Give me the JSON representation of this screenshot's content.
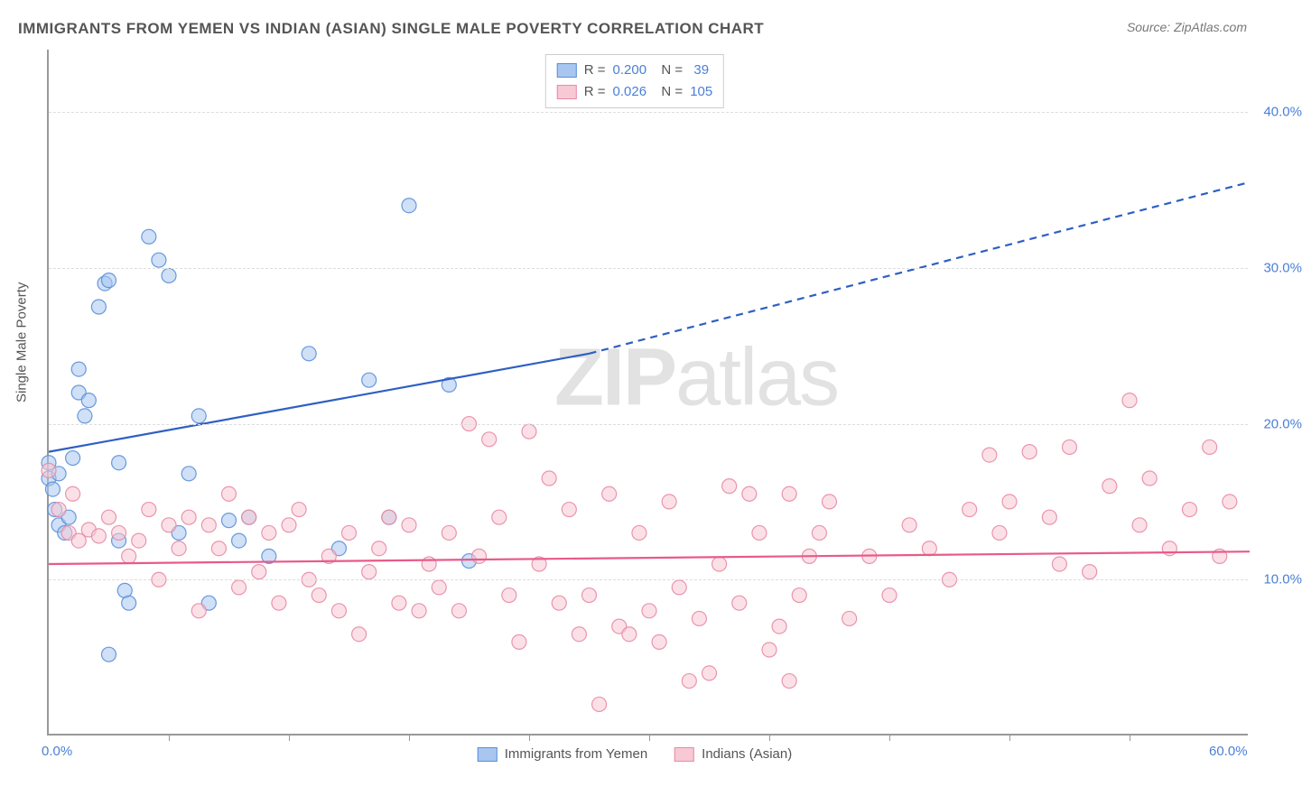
{
  "title": "IMMIGRANTS FROM YEMEN VS INDIAN (ASIAN) SINGLE MALE POVERTY CORRELATION CHART",
  "source_label": "Source:",
  "source_name": "ZipAtlas.com",
  "y_axis_label": "Single Male Poverty",
  "watermark": {
    "part1": "ZIP",
    "part2": "atlas"
  },
  "chart": {
    "type": "scatter",
    "xlim": [
      0,
      60
    ],
    "ylim": [
      0,
      44
    ],
    "x_ticks": [
      0,
      60
    ],
    "x_tick_labels": [
      "0.0%",
      "60.0%"
    ],
    "x_minor_ticks": [
      6,
      12,
      18,
      24,
      30,
      36,
      42,
      48,
      54
    ],
    "y_ticks": [
      10,
      20,
      30,
      40
    ],
    "y_tick_labels": [
      "10.0%",
      "20.0%",
      "30.0%",
      "40.0%"
    ],
    "background_color": "#ffffff",
    "grid_color": "#dddddd",
    "border_color": "#999999",
    "marker_radius": 8,
    "marker_opacity": 0.55,
    "marker_stroke_width": 1.2,
    "series": [
      {
        "name": "Immigrants from Yemen",
        "color_fill": "#a8c6f0",
        "color_stroke": "#5a8fd8",
        "R": "0.200",
        "N": "39",
        "trend": {
          "x1": 0,
          "y1": 18.2,
          "x2_solid": 27,
          "y2_solid": 24.5,
          "x2_dash": 60,
          "y2_dash": 35.5,
          "color": "#2e5fc4",
          "width": 2.2
        },
        "points": [
          [
            0,
            17.5
          ],
          [
            0,
            16.5
          ],
          [
            0.2,
            15.8
          ],
          [
            0.3,
            14.5
          ],
          [
            0.5,
            13.5
          ],
          [
            0.5,
            16.8
          ],
          [
            0.8,
            13.0
          ],
          [
            1.0,
            14.0
          ],
          [
            1.2,
            17.8
          ],
          [
            1.5,
            22.0
          ],
          [
            1.5,
            23.5
          ],
          [
            1.8,
            20.5
          ],
          [
            2.0,
            21.5
          ],
          [
            2.5,
            27.5
          ],
          [
            2.8,
            29.0
          ],
          [
            3.0,
            29.2
          ],
          [
            3.5,
            17.5
          ],
          [
            3.5,
            12.5
          ],
          [
            3.8,
            9.3
          ],
          [
            4.0,
            8.5
          ],
          [
            5.0,
            32.0
          ],
          [
            5.5,
            30.5
          ],
          [
            6.0,
            29.5
          ],
          [
            6.5,
            13.0
          ],
          [
            7.0,
            16.8
          ],
          [
            7.5,
            20.5
          ],
          [
            8.0,
            8.5
          ],
          [
            9.0,
            13.8
          ],
          [
            9.5,
            12.5
          ],
          [
            10.0,
            14.0
          ],
          [
            11.0,
            11.5
          ],
          [
            13.0,
            24.5
          ],
          [
            14.5,
            12.0
          ],
          [
            16.0,
            22.8
          ],
          [
            17.0,
            14.0
          ],
          [
            18.0,
            34.0
          ],
          [
            20.0,
            22.5
          ],
          [
            21.0,
            11.2
          ],
          [
            3.0,
            5.2
          ]
        ]
      },
      {
        "name": "Indians (Asian)",
        "color_fill": "#f8c8d4",
        "color_stroke": "#e88aa5",
        "R": "0.026",
        "N": "105",
        "trend": {
          "x1": 0,
          "y1": 11.0,
          "x2_solid": 60,
          "y2_solid": 11.8,
          "color": "#e85a8a",
          "width": 2.2
        },
        "points": [
          [
            0,
            17.0
          ],
          [
            0.5,
            14.5
          ],
          [
            1.0,
            13.0
          ],
          [
            1.2,
            15.5
          ],
          [
            1.5,
            12.5
          ],
          [
            2.0,
            13.2
          ],
          [
            2.5,
            12.8
          ],
          [
            3.0,
            14.0
          ],
          [
            3.5,
            13.0
          ],
          [
            4.0,
            11.5
          ],
          [
            4.5,
            12.5
          ],
          [
            5.0,
            14.5
          ],
          [
            5.5,
            10.0
          ],
          [
            6.0,
            13.5
          ],
          [
            6.5,
            12.0
          ],
          [
            7.0,
            14.0
          ],
          [
            7.5,
            8.0
          ],
          [
            8.0,
            13.5
          ],
          [
            8.5,
            12.0
          ],
          [
            9.0,
            15.5
          ],
          [
            9.5,
            9.5
          ],
          [
            10.0,
            14.0
          ],
          [
            10.5,
            10.5
          ],
          [
            11.0,
            13.0
          ],
          [
            11.5,
            8.5
          ],
          [
            12.0,
            13.5
          ],
          [
            12.5,
            14.5
          ],
          [
            13.0,
            10.0
          ],
          [
            13.5,
            9.0
          ],
          [
            14.0,
            11.5
          ],
          [
            14.5,
            8.0
          ],
          [
            15.0,
            13.0
          ],
          [
            15.5,
            6.5
          ],
          [
            16.0,
            10.5
          ],
          [
            16.5,
            12.0
          ],
          [
            17.0,
            14.0
          ],
          [
            17.5,
            8.5
          ],
          [
            18.0,
            13.5
          ],
          [
            18.5,
            8.0
          ],
          [
            19.0,
            11.0
          ],
          [
            19.5,
            9.5
          ],
          [
            20.0,
            13.0
          ],
          [
            20.5,
            8.0
          ],
          [
            21.0,
            20.0
          ],
          [
            21.5,
            11.5
          ],
          [
            22.0,
            19.0
          ],
          [
            22.5,
            14.0
          ],
          [
            23.0,
            9.0
          ],
          [
            23.5,
            6.0
          ],
          [
            24.0,
            19.5
          ],
          [
            24.5,
            11.0
          ],
          [
            25.0,
            16.5
          ],
          [
            25.5,
            8.5
          ],
          [
            26.0,
            14.5
          ],
          [
            26.5,
            6.5
          ],
          [
            27.0,
            9.0
          ],
          [
            27.5,
            2.0
          ],
          [
            28.0,
            15.5
          ],
          [
            28.5,
            7.0
          ],
          [
            29.0,
            6.5
          ],
          [
            29.5,
            13.0
          ],
          [
            30.0,
            8.0
          ],
          [
            30.5,
            6.0
          ],
          [
            31.0,
            15.0
          ],
          [
            31.5,
            9.5
          ],
          [
            32.0,
            3.5
          ],
          [
            32.5,
            7.5
          ],
          [
            33.0,
            4.0
          ],
          [
            33.5,
            11.0
          ],
          [
            34.0,
            16.0
          ],
          [
            34.5,
            8.5
          ],
          [
            35.0,
            15.5
          ],
          [
            35.5,
            13.0
          ],
          [
            36.0,
            5.5
          ],
          [
            36.5,
            7.0
          ],
          [
            37.0,
            15.5
          ],
          [
            37.5,
            9.0
          ],
          [
            38.0,
            11.5
          ],
          [
            38.5,
            13.0
          ],
          [
            39.0,
            15.0
          ],
          [
            40.0,
            7.5
          ],
          [
            41.0,
            11.5
          ],
          [
            42.0,
            9.0
          ],
          [
            43.0,
            13.5
          ],
          [
            44.0,
            12.0
          ],
          [
            45.0,
            10.0
          ],
          [
            46.0,
            14.5
          ],
          [
            47.0,
            18.0
          ],
          [
            47.5,
            13.0
          ],
          [
            48.0,
            15.0
          ],
          [
            49.0,
            18.2
          ],
          [
            50.0,
            14.0
          ],
          [
            50.5,
            11.0
          ],
          [
            51.0,
            18.5
          ],
          [
            52.0,
            10.5
          ],
          [
            53.0,
            16.0
          ],
          [
            54.0,
            21.5
          ],
          [
            54.5,
            13.5
          ],
          [
            55.0,
            16.5
          ],
          [
            56.0,
            12.0
          ],
          [
            57.0,
            14.5
          ],
          [
            58.0,
            18.5
          ],
          [
            58.5,
            11.5
          ],
          [
            59.0,
            15.0
          ],
          [
            37.0,
            3.5
          ]
        ]
      }
    ]
  }
}
